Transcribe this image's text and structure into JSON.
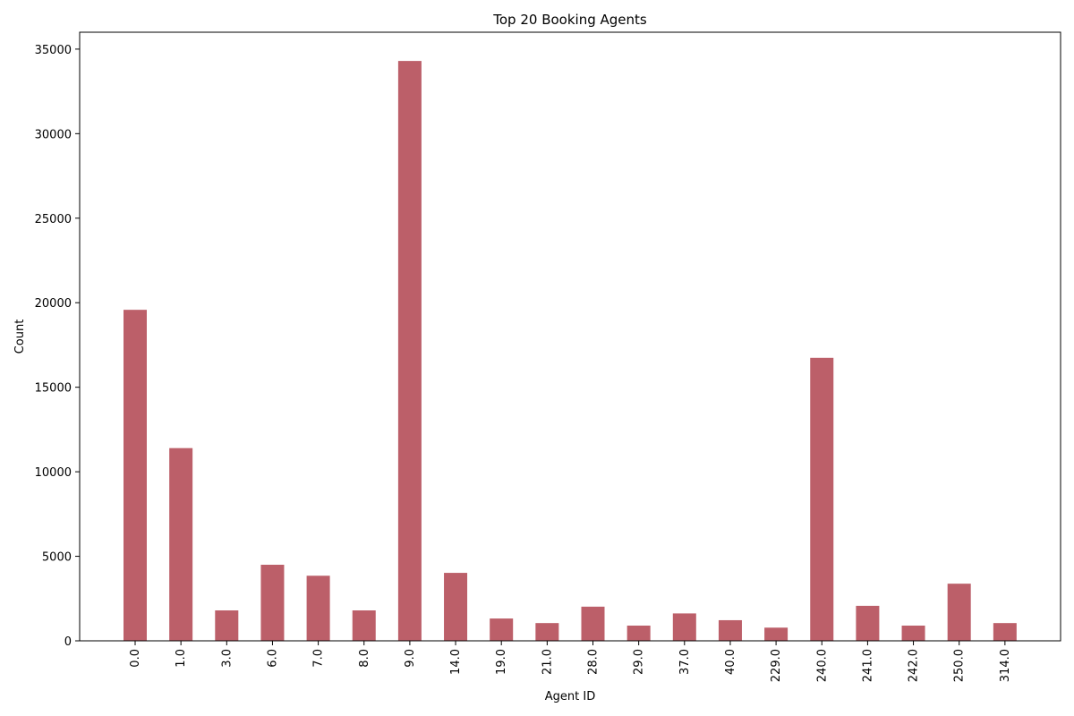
{
  "chart_data": {
    "type": "bar",
    "title": "Top 20 Booking Agents",
    "xlabel": "Agent ID",
    "ylabel": "Count",
    "categories": [
      "0.0",
      "1.0",
      "3.0",
      "6.0",
      "7.0",
      "8.0",
      "9.0",
      "14.0",
      "19.0",
      "21.0",
      "28.0",
      "29.0",
      "37.0",
      "40.0",
      "229.0",
      "240.0",
      "241.0",
      "242.0",
      "250.0",
      "314.0"
    ],
    "values": [
      19580,
      11400,
      1800,
      4500,
      3850,
      1800,
      34300,
      4020,
      1320,
      1050,
      2020,
      900,
      1620,
      1220,
      780,
      16740,
      2070,
      900,
      3380,
      1050
    ],
    "ylim": [
      0,
      36000
    ],
    "yticks": [
      0,
      5000,
      10000,
      15000,
      20000,
      25000,
      30000,
      35000
    ],
    "bar_color": "#bc5f69",
    "grid": false,
    "legend": "none"
  }
}
